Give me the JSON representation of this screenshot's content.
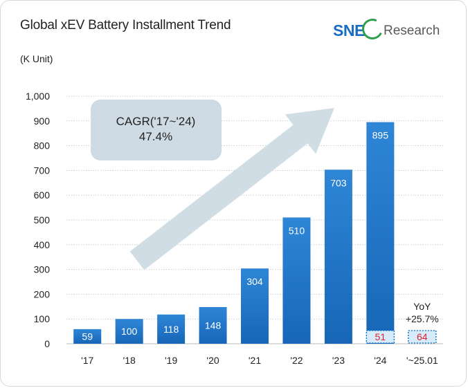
{
  "header": {
    "title": "Global xEV Battery Installment Trend",
    "unit": "(K Unit)",
    "logo_brand": "SNE",
    "logo_suffix": "Research"
  },
  "colors": {
    "bar_top": "#2f86d6",
    "bar_bottom": "#1766b8",
    "highlight_fill": "#d6ecfb",
    "highlight_border": "#1e78c8",
    "highlight_text": "#e0202a",
    "arrow": "#cfdbe4",
    "callout_fill": "#cfdbe4",
    "grid": "#cccccc",
    "text": "#222222"
  },
  "chart_data": {
    "type": "bar",
    "categories": [
      "'17",
      "'18",
      "'19",
      "'20",
      "'21",
      "'22",
      "'23",
      "'24",
      "'~25.01"
    ],
    "values": [
      59,
      100,
      118,
      148,
      304,
      510,
      703,
      895,
      null
    ],
    "value_labels": [
      "59",
      "100",
      "118",
      "148",
      "304",
      "510",
      "703",
      "895",
      ""
    ],
    "ylim": [
      0,
      1000
    ],
    "yticks": [
      0,
      100,
      200,
      300,
      400,
      500,
      600,
      700,
      800,
      900,
      1000
    ],
    "ytick_labels": [
      "0",
      "100",
      "200",
      "300",
      "400",
      "500",
      "600",
      "700",
      "800",
      "900",
      "1,000"
    ],
    "grid": true,
    "highlight_segments": [
      {
        "category": "'24",
        "value": 51,
        "label": "51"
      },
      {
        "category": "'~25.01",
        "value": 64,
        "label": "64"
      }
    ],
    "annotations": {
      "cagr_line1": "CAGR('17~'24)",
      "cagr_line2": "47.4%",
      "yoy_line1": "YoY",
      "yoy_line2": "+25.7%"
    }
  }
}
